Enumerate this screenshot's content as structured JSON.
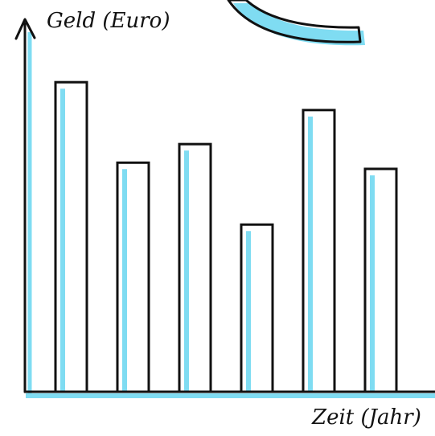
{
  "chart_data": {
    "type": "bar",
    "categories": [
      "",
      "",
      "",
      "",
      "",
      ""
    ],
    "values": [
      100,
      74,
      80,
      54,
      91,
      72
    ],
    "title": "",
    "xlabel": "Zeit (Jahr)",
    "ylabel": "Geld (Euro)",
    "ylim": [
      0,
      115
    ],
    "grid": false,
    "legend": "none"
  },
  "colors": {
    "ink": "#111111",
    "shadow": "#7fdcf2",
    "background": "#ffffff"
  },
  "decoration": {
    "icon": "curved-arc-shape"
  }
}
